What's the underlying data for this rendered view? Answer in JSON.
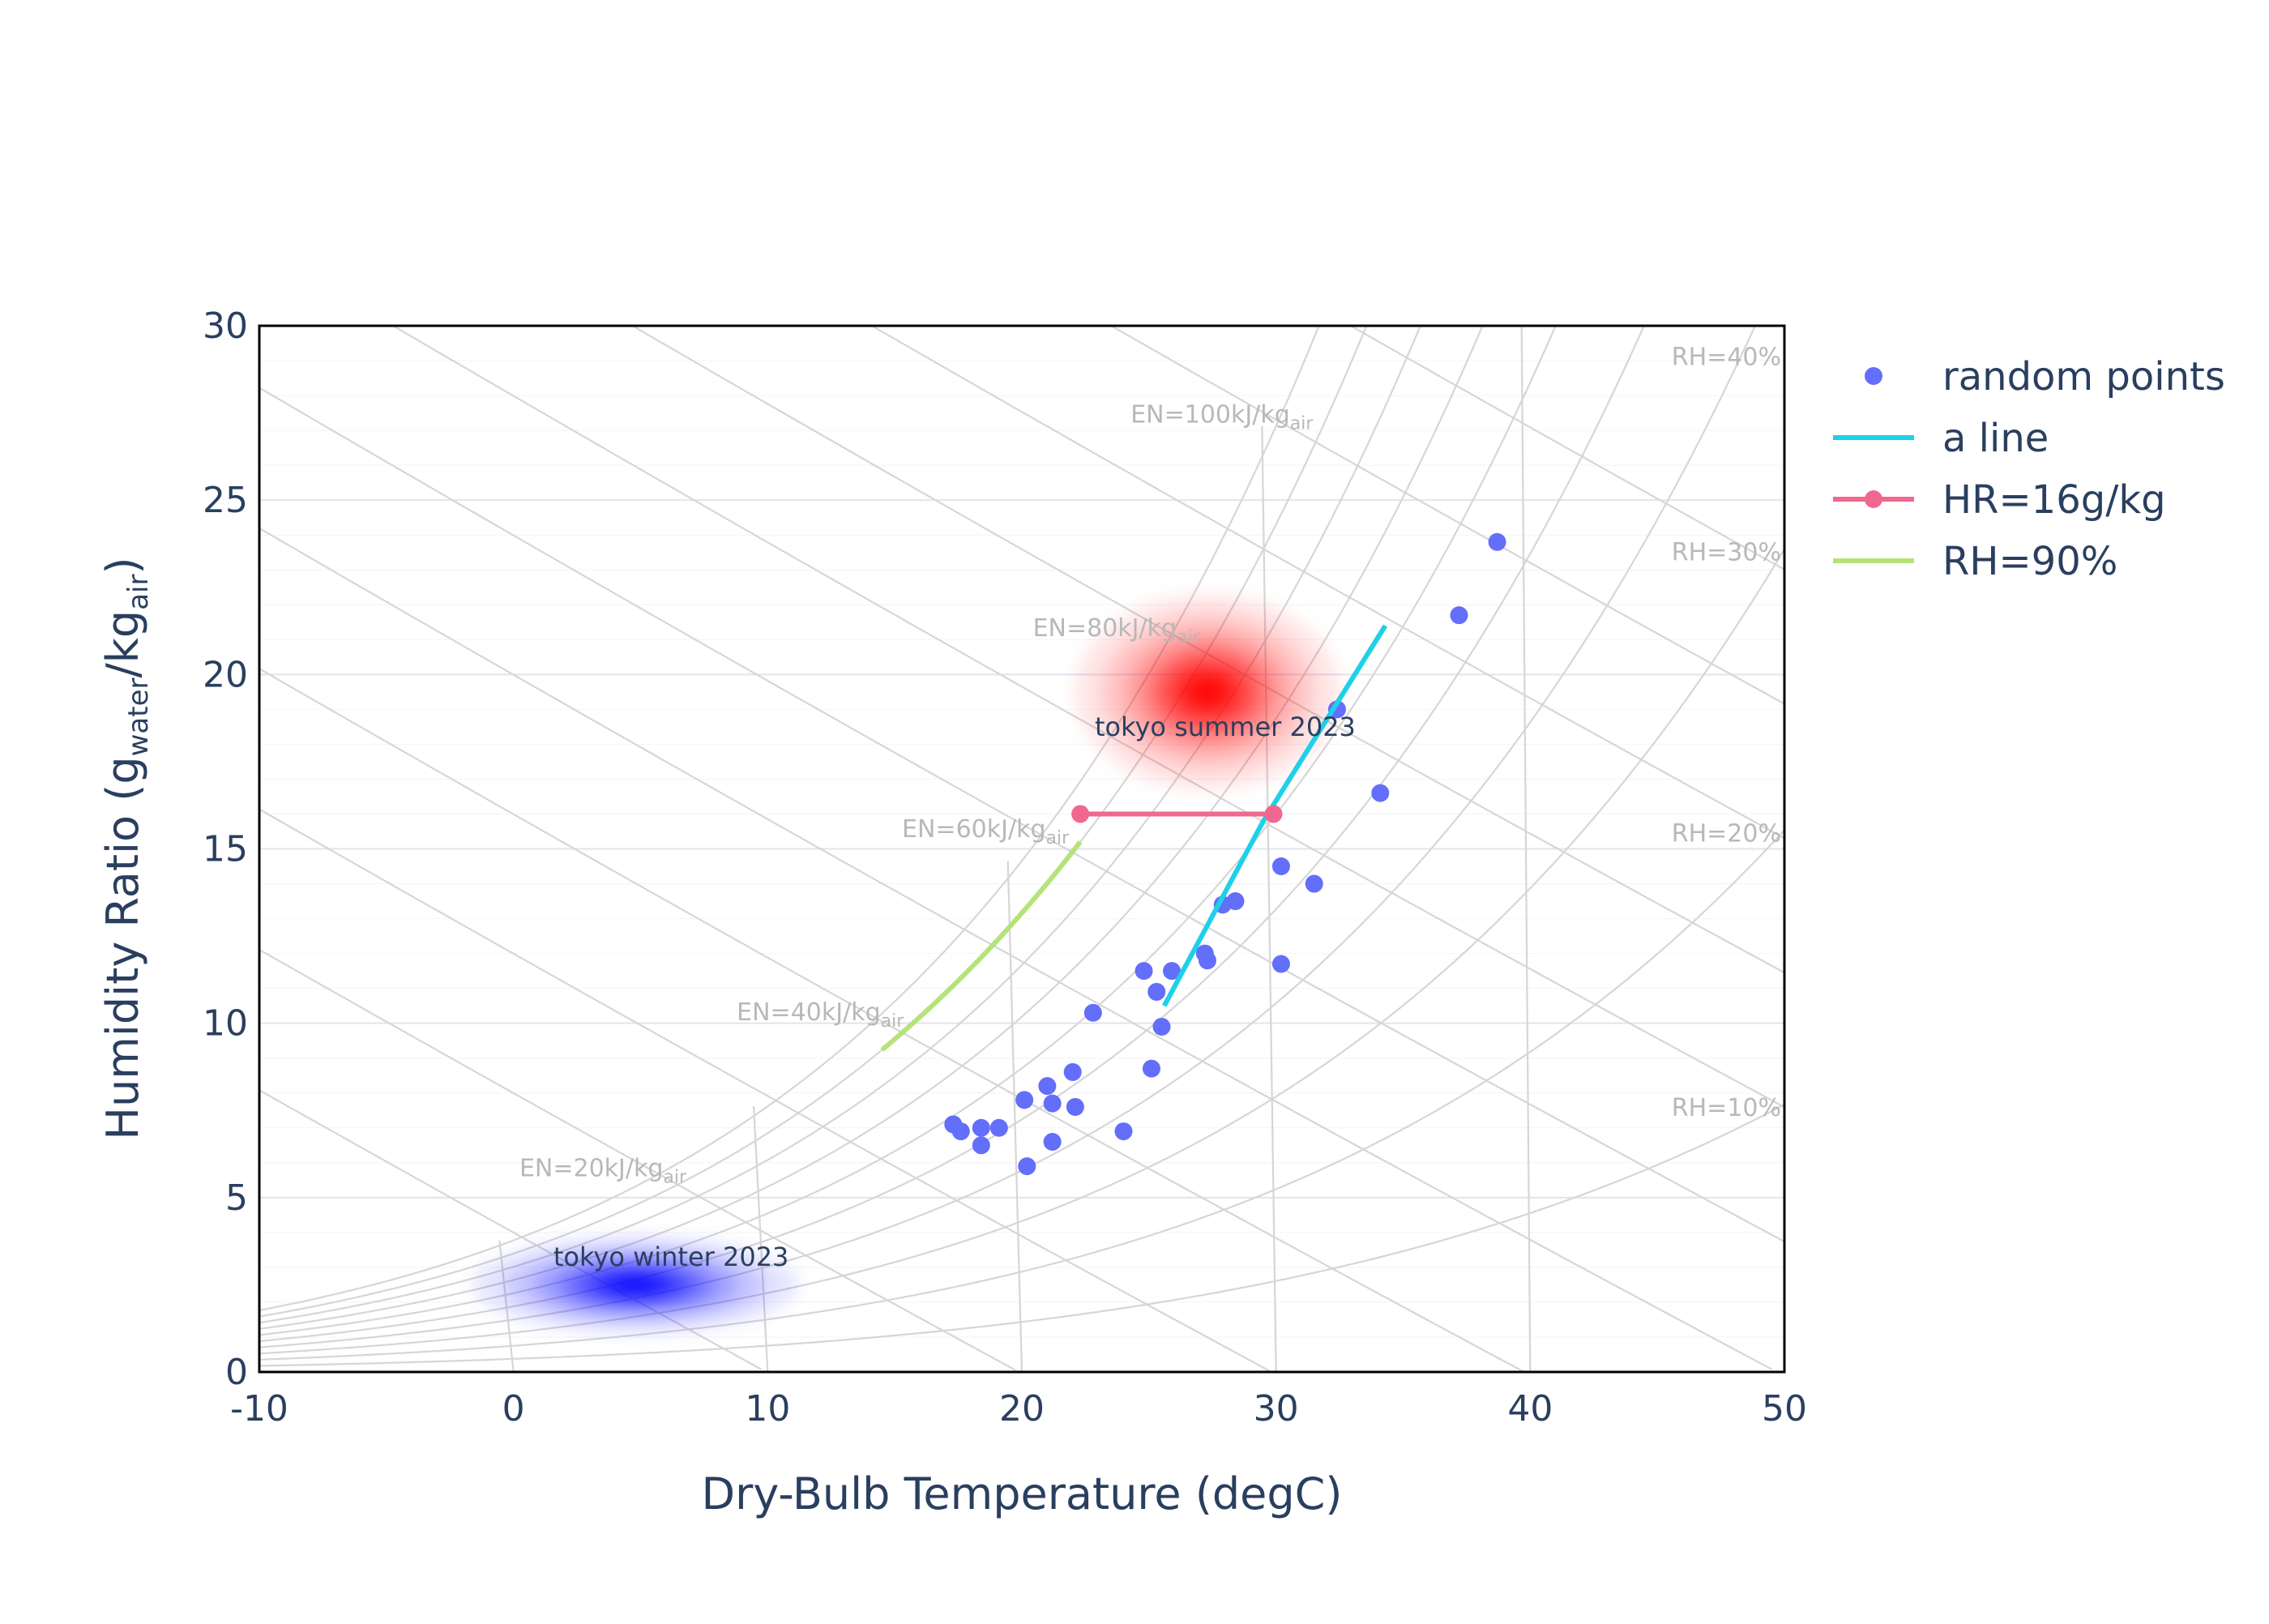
{
  "chart_data": {
    "type": "scatter",
    "title": "",
    "xlabel": "Dry-Bulb Temperature (degC)",
    "ylabel": {
      "main": "Humidity Ratio (g",
      "sub1": "water",
      "mid": "/kg",
      "sub2": "air",
      "end": ")"
    },
    "xlim": [
      -10,
      50
    ],
    "ylim": [
      0,
      30
    ],
    "x_ticks": [
      "-10",
      "0",
      "10",
      "20",
      "30",
      "40",
      "50"
    ],
    "y_ticks": [
      "0",
      "5",
      "10",
      "15",
      "20",
      "25",
      "30"
    ],
    "legend_position": "right",
    "grid": true,
    "rh_curves": [
      {
        "label": "",
        "rh": 100
      },
      {
        "label": "",
        "rh": 90
      },
      {
        "label": "",
        "rh": 80
      },
      {
        "label": "",
        "rh": 70
      },
      {
        "label": "",
        "rh": 60
      },
      {
        "label": "",
        "rh": 50
      },
      {
        "label": "RH=40%",
        "rh": 40
      },
      {
        "label": "RH=30%",
        "rh": 30
      },
      {
        "label": "RH=20%",
        "rh": 20
      },
      {
        "label": "RH=10%",
        "rh": 10
      }
    ],
    "enthalpy_lines": [
      {
        "h": 10,
        "label": ""
      },
      {
        "h": 20,
        "label": "EN=20kJ/kg",
        "sub": "air"
      },
      {
        "h": 30,
        "label": ""
      },
      {
        "h": 40,
        "label": "EN=40kJ/kg",
        "sub": "air"
      },
      {
        "h": 50,
        "label": ""
      },
      {
        "h": 60,
        "label": "EN=60kJ/kg",
        "sub": "air"
      },
      {
        "h": 70,
        "label": ""
      },
      {
        "h": 80,
        "label": "EN=80kJ/kg",
        "sub": "air"
      },
      {
        "h": 90,
        "label": ""
      },
      {
        "h": 100,
        "label": "EN=100kJ/kg",
        "sub": "air"
      },
      {
        "h": 110,
        "label": ""
      }
    ],
    "wet_bulb_lines": [
      0,
      10,
      20,
      30,
      40
    ],
    "series": [
      {
        "name": "random points",
        "kind": "markers",
        "color": "#636efa",
        "points": [
          [
            38.7,
            23.8
          ],
          [
            37.2,
            21.7
          ],
          [
            32.4,
            19.0
          ],
          [
            34.1,
            16.6
          ],
          [
            30.2,
            14.5
          ],
          [
            31.5,
            14.0
          ],
          [
            27.9,
            13.4
          ],
          [
            28.4,
            13.5
          ],
          [
            30.2,
            11.7
          ],
          [
            27.2,
            12.0
          ],
          [
            27.3,
            11.8
          ],
          [
            24.8,
            11.5
          ],
          [
            25.9,
            11.5
          ],
          [
            25.3,
            10.9
          ],
          [
            22.8,
            10.3
          ],
          [
            25.5,
            9.9
          ],
          [
            25.1,
            8.7
          ],
          [
            22.0,
            8.6
          ],
          [
            21.0,
            8.2
          ],
          [
            20.1,
            7.8
          ],
          [
            21.2,
            7.7
          ],
          [
            22.1,
            7.6
          ],
          [
            17.3,
            7.1
          ],
          [
            17.6,
            6.9
          ],
          [
            18.4,
            7.0
          ],
          [
            19.1,
            7.0
          ],
          [
            18.4,
            6.5
          ],
          [
            21.2,
            6.6
          ],
          [
            24.0,
            6.9
          ],
          [
            20.2,
            5.9
          ]
        ]
      },
      {
        "name": "a line",
        "kind": "line",
        "color": "#1ed0e8",
        "points": [
          [
            25.6,
            10.5
          ],
          [
            29.5,
            15.8
          ],
          [
            34.3,
            21.4
          ]
        ]
      },
      {
        "name": "HR=16g/kg",
        "kind": "lines+markers",
        "color": "#f0688f",
        "points": [
          [
            22.3,
            16.0
          ],
          [
            29.9,
            16.0
          ]
        ]
      },
      {
        "name": "RH=90%",
        "kind": "rh-line",
        "color": "#b5e37a",
        "rh": 90,
        "x_range": [
          14.5,
          22.3
        ]
      }
    ],
    "regions": [
      {
        "label": "tokyo summer 2023",
        "color": "#ff0000",
        "center": [
          27.3,
          19.5
        ],
        "spread": [
          2.6,
          1.4
        ],
        "label_pos": [
          28.0,
          18.5
        ]
      },
      {
        "label": "tokyo winter 2023",
        "color": "#0000ff",
        "center": [
          4.8,
          2.5
        ],
        "spread": [
          3.2,
          0.7
        ],
        "label_pos": [
          6.2,
          3.3
        ]
      }
    ]
  }
}
